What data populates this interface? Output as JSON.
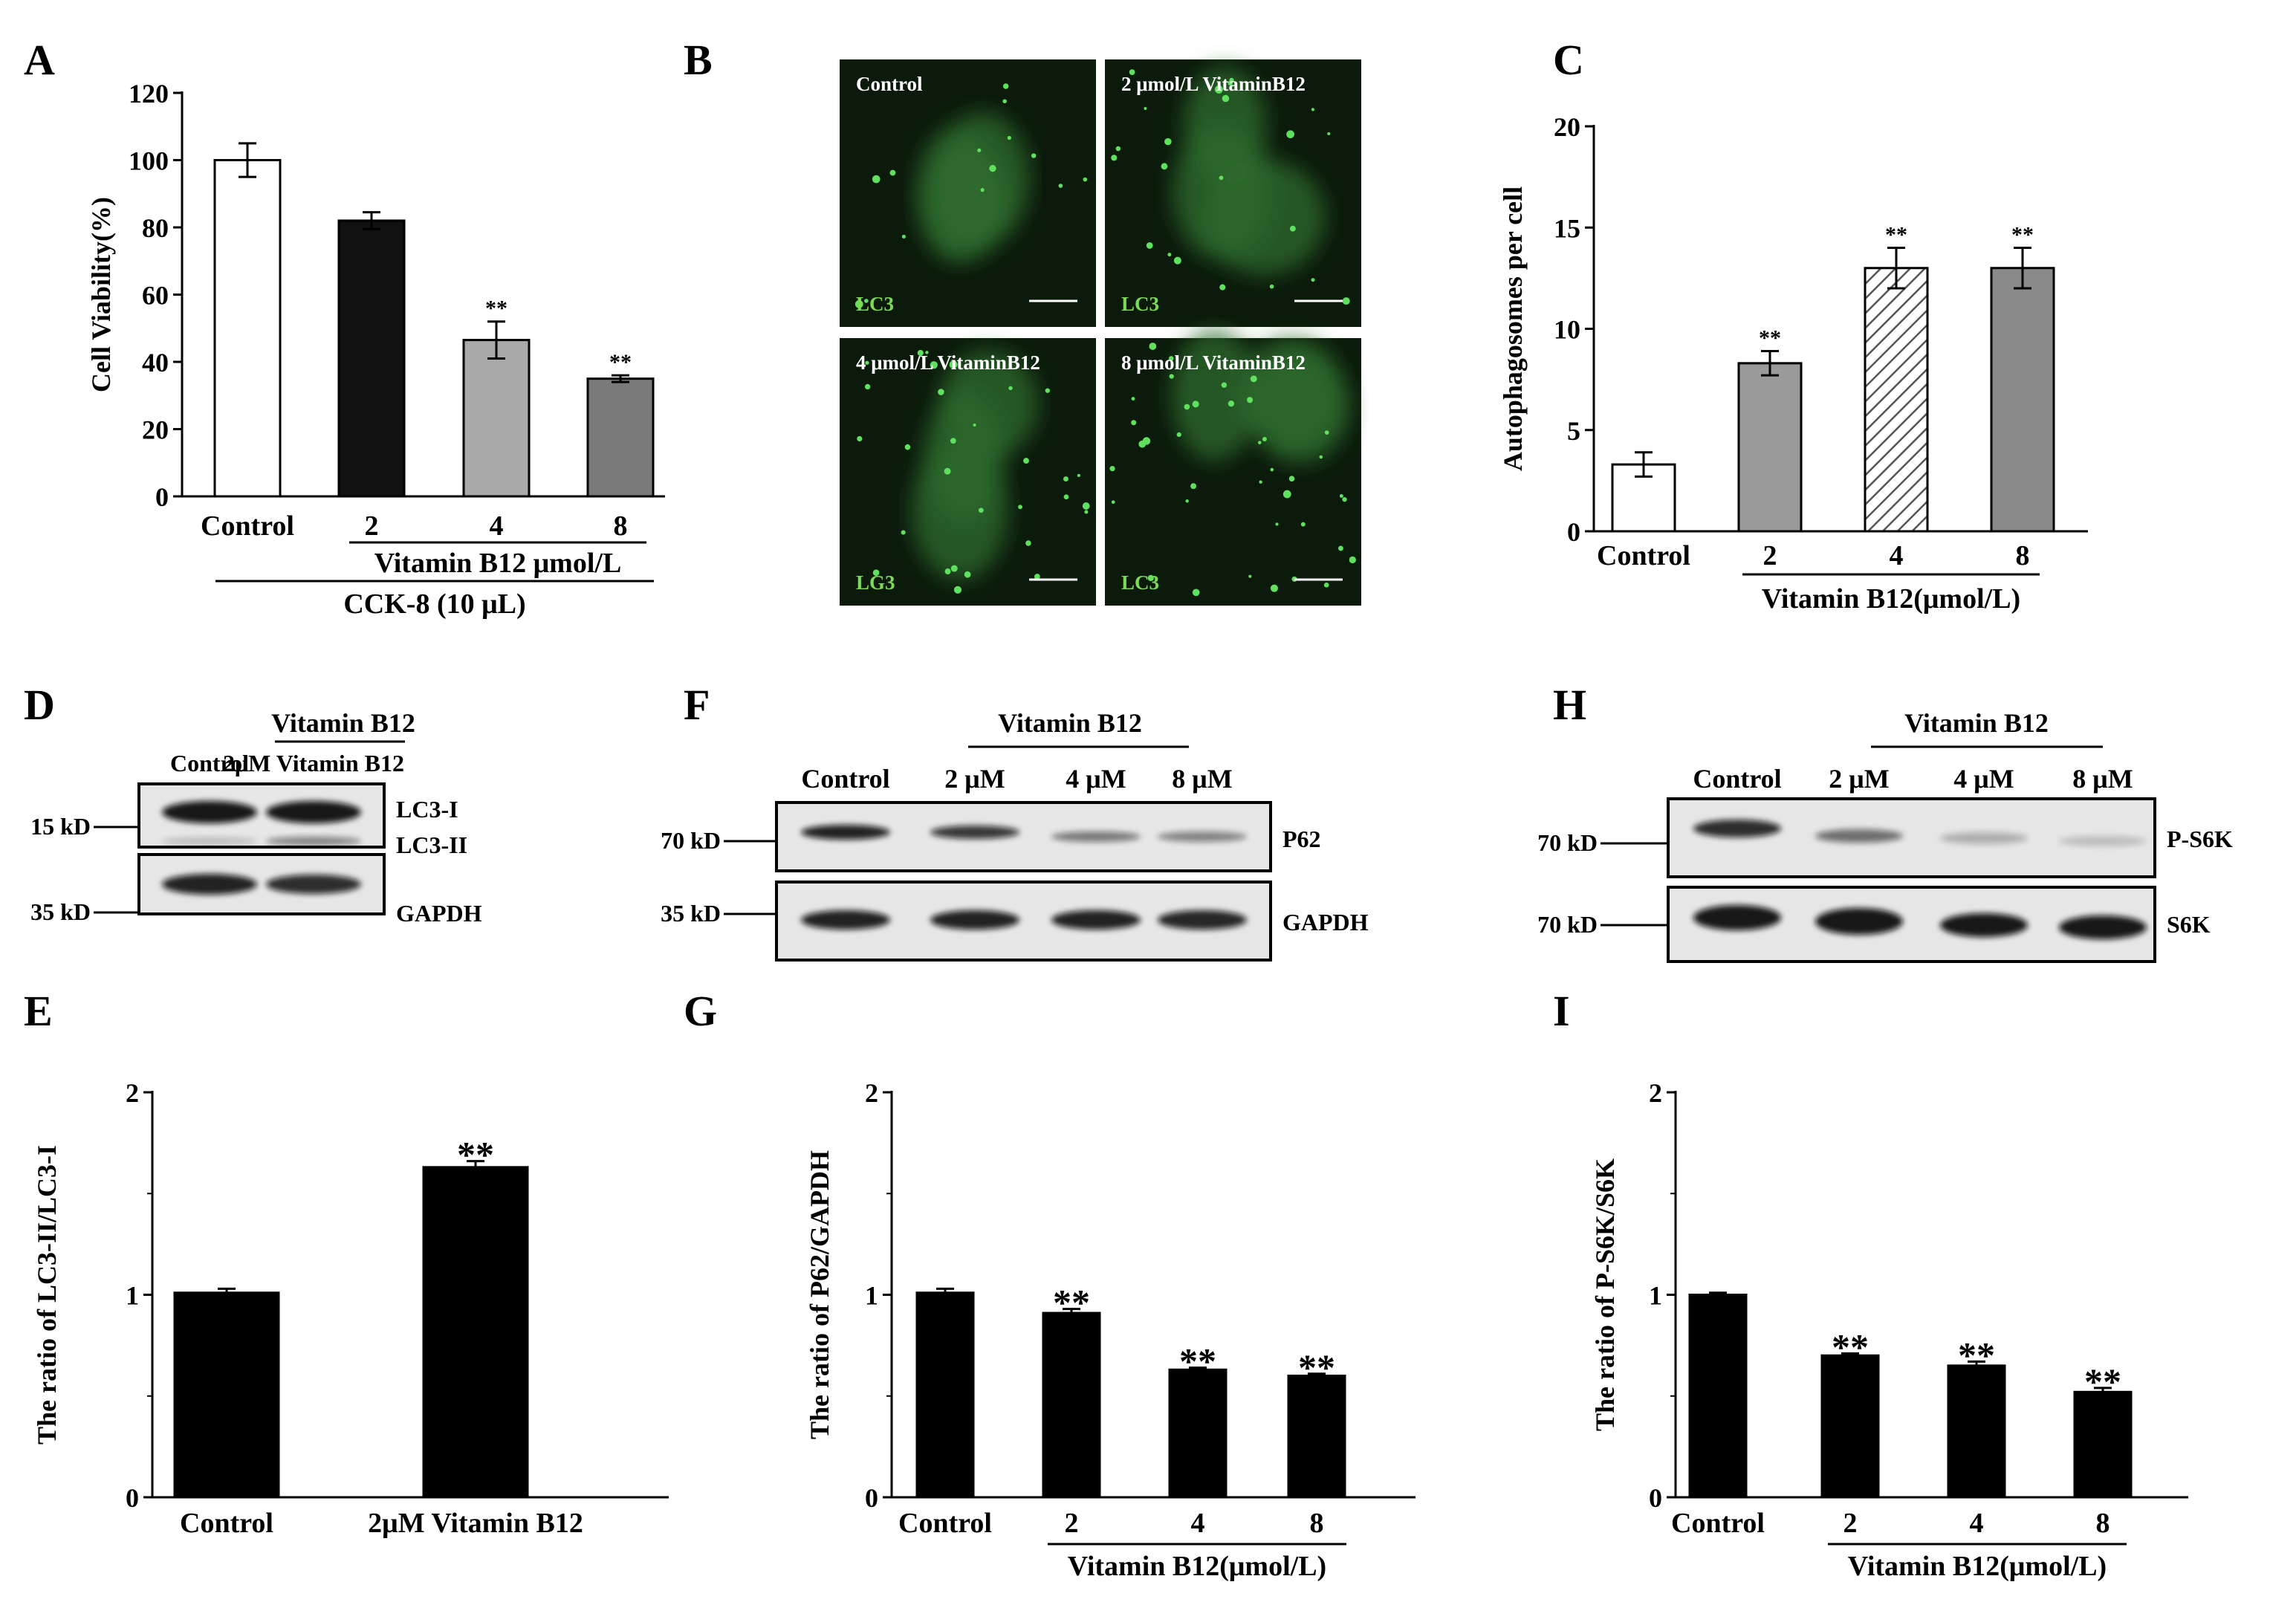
{
  "panels": {
    "A": "A",
    "B": "B",
    "C": "C",
    "D": "D",
    "E": "E",
    "F": "F",
    "G": "G",
    "H": "H",
    "I": "I"
  },
  "chart_data": [
    {
      "id": "A",
      "type": "bar",
      "ylabel": "Cell Viability(%)",
      "ylim": [
        0,
        120
      ],
      "yticks": [
        0,
        20,
        40,
        60,
        80,
        100,
        120
      ],
      "categories": [
        "Control",
        "2",
        "4",
        "8"
      ],
      "values": [
        100,
        82,
        46.5,
        35
      ],
      "errors": [
        5,
        2.5,
        5.5,
        1
      ],
      "significance": [
        "",
        "",
        "**",
        "**"
      ],
      "bar_colors": [
        "#ffffff",
        "#111111",
        "#a9a9a9",
        "#7a7a7a"
      ],
      "group_label": "Vitamin B12 μmol/L",
      "group_label2": "CCK-8 (10 μL)"
    },
    {
      "id": "C",
      "type": "bar",
      "ylabel": "Autophagosomes per cell",
      "ylim": [
        0,
        20
      ],
      "yticks": [
        0,
        5,
        10,
        15,
        20
      ],
      "categories": [
        "Control",
        "2",
        "4",
        "8"
      ],
      "values": [
        3.3,
        8.3,
        13,
        13
      ],
      "errors": [
        0.6,
        0.6,
        1,
        1
      ],
      "significance": [
        "",
        "**",
        "**",
        "**"
      ],
      "bar_colors": [
        "#ffffff",
        "#9a9a9a",
        "hatch",
        "#8a8a8a"
      ],
      "group_label": "Vitamin B12(μmol/L)"
    },
    {
      "id": "E",
      "type": "bar",
      "ylabel": "The ratio of LC3-II/LC3-I",
      "ylim": [
        0,
        2
      ],
      "yticks": [
        0,
        1,
        2
      ],
      "categories": [
        "Control",
        "2μM Vitamin B12"
      ],
      "values": [
        1.01,
        1.63
      ],
      "errors": [
        0.02,
        0.03
      ],
      "significance": [
        "",
        "**"
      ],
      "bar_colors": [
        "#000000",
        "#000000"
      ]
    },
    {
      "id": "G",
      "type": "bar",
      "ylabel": "The ratio of P62/GAPDH",
      "ylim": [
        0,
        2
      ],
      "yticks": [
        0,
        1,
        2
      ],
      "categories": [
        "Control",
        "2",
        "4",
        "8"
      ],
      "values": [
        1.01,
        0.91,
        0.63,
        0.6
      ],
      "errors": [
        0.02,
        0.02,
        0.01,
        0.01
      ],
      "significance": [
        "",
        "**",
        "**",
        "**"
      ],
      "bar_colors": [
        "#000000",
        "#000000",
        "#000000",
        "#000000"
      ],
      "group_label": "Vitamin B12(μmol/L)"
    },
    {
      "id": "I",
      "type": "bar",
      "ylabel": "The ratio of P-S6K/S6K",
      "ylim": [
        0,
        2
      ],
      "yticks": [
        0,
        1,
        2
      ],
      "categories": [
        "Control",
        "2",
        "4",
        "8"
      ],
      "values": [
        1.0,
        0.7,
        0.65,
        0.52
      ],
      "errors": [
        0.01,
        0.01,
        0.02,
        0.02
      ],
      "significance": [
        "",
        "**",
        "**",
        "**"
      ],
      "bar_colors": [
        "#000000",
        "#000000",
        "#000000",
        "#000000"
      ],
      "group_label": "Vitamin B12(μmol/L)"
    }
  ],
  "micrographs": [
    {
      "title": "Control",
      "label": "LC3"
    },
    {
      "title": "2 μmol/L VitaminB12",
      "label": "LC3"
    },
    {
      "title": "4 μmol/L VitaminB12",
      "label": "LG3"
    },
    {
      "title": "8 μmol/L VitaminB12",
      "label": "LC3"
    }
  ],
  "blots": {
    "D": {
      "group": "Vitamin B12",
      "lanes": [
        "Control",
        "2μM Vitamin B12"
      ],
      "rows": [
        {
          "marker": "15 kD",
          "labels": [
            "LC3-I",
            "LC3-II"
          ]
        },
        {
          "marker": "35 kD",
          "labels": [
            "GAPDH"
          ]
        }
      ]
    },
    "F": {
      "group": "Vitamin B12",
      "lanes": [
        "Control",
        "2 μM",
        "4 μM",
        "8 μM"
      ],
      "rows": [
        {
          "marker": "70 kD",
          "labels": [
            "P62"
          ]
        },
        {
          "marker": "35 kD",
          "labels": [
            "GAPDH"
          ]
        }
      ]
    },
    "H": {
      "group": "Vitamin B12",
      "lanes": [
        "Control",
        "2 μM",
        "4 μM",
        "8 μM"
      ],
      "rows": [
        {
          "marker": "70 kD",
          "labels": [
            "P-S6K"
          ]
        },
        {
          "marker": "70 kD",
          "labels": [
            "S6K"
          ]
        }
      ]
    }
  }
}
